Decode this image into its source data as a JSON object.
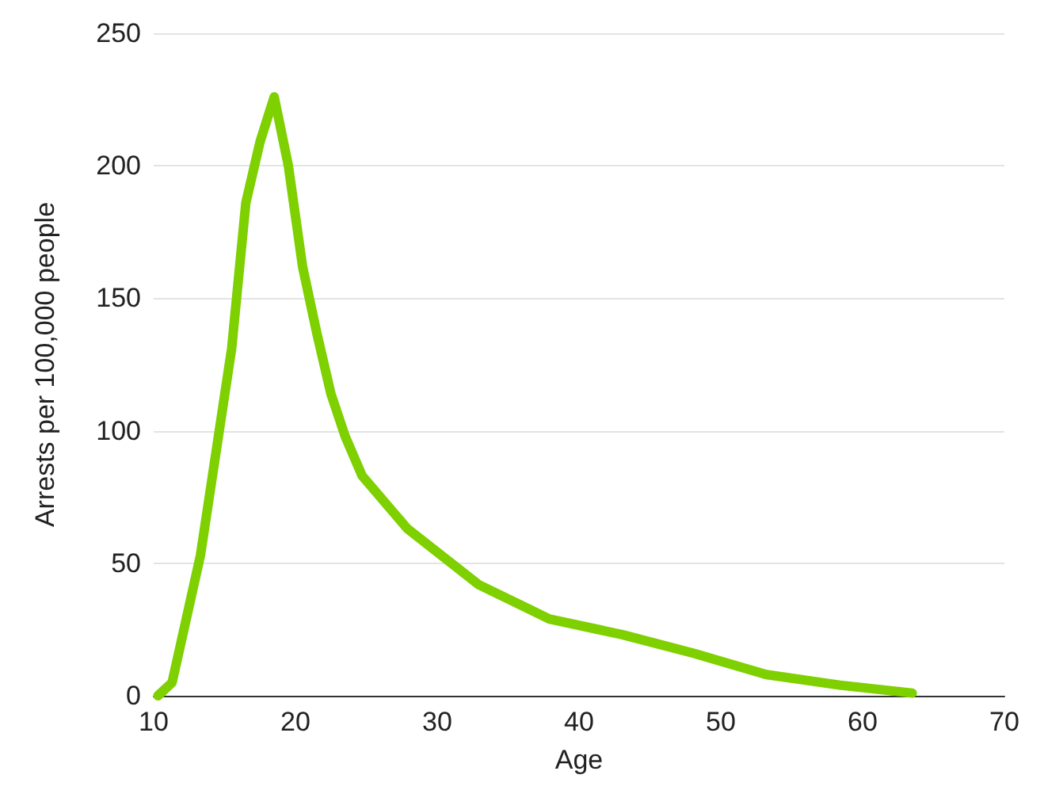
{
  "chart_data": {
    "type": "line",
    "xlabel": "Age",
    "ylabel": "Arrests per 100,000 people",
    "x": [
      10.3,
      11.3,
      13.3,
      15.5,
      16.5,
      17.5,
      18.5,
      19.5,
      20.5,
      21.5,
      22.5,
      23.5,
      24.7,
      27.9,
      32.9,
      37.9,
      43.1,
      48.1,
      53.2,
      58.4,
      63.5
    ],
    "series": [
      {
        "color": "#7ed000",
        "values": [
          0,
          5,
          53,
          131,
          186,
          209,
          226,
          200,
          162,
          137,
          114,
          98,
          83,
          63,
          42,
          29,
          23,
          16,
          8,
          4,
          1
        ]
      }
    ],
    "xlim": [
      10,
      70
    ],
    "xticks": [
      10,
      20,
      30,
      40,
      50,
      60,
      70
    ],
    "ylim": [
      0,
      250
    ],
    "yticks": [
      0,
      50,
      100,
      150,
      200,
      250
    ],
    "grid": "y",
    "line_style": "solid"
  }
}
